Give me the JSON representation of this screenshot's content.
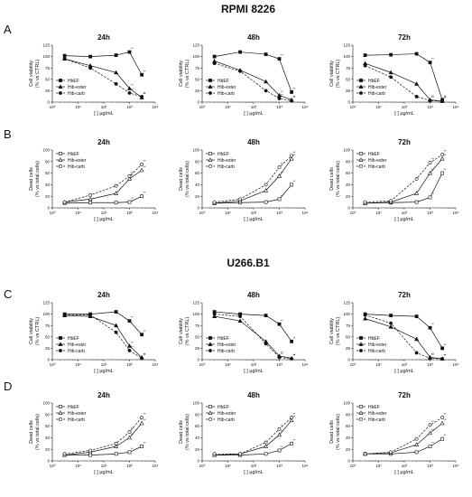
{
  "headers": {
    "rpmi": "RPMI 8226",
    "u266": "U266.B1"
  },
  "panel_letters": [
    "A",
    "B",
    "C",
    "D"
  ],
  "xlabel": "[ ] µg/mL",
  "ylabel_viability": [
    "Cell viability",
    "(% vs CTRL)"
  ],
  "ylabel_dead": [
    "Dead cells",
    "(% vs total cells)"
  ],
  "significance_label": "**",
  "x_tick_labels": [
    "10⁰",
    "10¹",
    "10²",
    "10³",
    "10⁴"
  ],
  "legend": [
    "HbEF",
    "Hib-ester",
    "Hib-carb"
  ],
  "chart_data": [
    {
      "panel": "A",
      "cell_line": "RPMI 8226",
      "title": "24h",
      "type": "line",
      "x_scale": "log",
      "xlim": [
        1,
        10000
      ],
      "ylim": [
        0,
        125
      ],
      "yticks": [
        0,
        25,
        50,
        75,
        100,
        125
      ],
      "legend_position": "bottom-left",
      "x": [
        3,
        30,
        300,
        1000,
        3000
      ],
      "series": [
        {
          "name": "HbEF",
          "values": [
            102,
            100,
            103,
            110,
            60
          ]
        },
        {
          "name": "Hib-ester",
          "values": [
            95,
            80,
            65,
            30,
            10
          ]
        },
        {
          "name": "Hib-carb",
          "values": [
            95,
            75,
            40,
            20,
            12
          ]
        }
      ]
    },
    {
      "panel": "A",
      "cell_line": "RPMI 8226",
      "title": "48h",
      "type": "line",
      "x_scale": "log",
      "xlim": [
        1,
        10000
      ],
      "ylim": [
        0,
        125
      ],
      "yticks": [
        0,
        25,
        50,
        75,
        100,
        125
      ],
      "legend_position": "bottom-left",
      "x": [
        3,
        30,
        300,
        1000,
        3000
      ],
      "series": [
        {
          "name": "HbEF",
          "values": [
            100,
            110,
            105,
            95,
            22
          ]
        },
        {
          "name": "Hib-ester",
          "values": [
            90,
            70,
            45,
            15,
            5
          ]
        },
        {
          "name": "Hib-carb",
          "values": [
            85,
            68,
            25,
            8,
            3
          ]
        }
      ]
    },
    {
      "panel": "A",
      "cell_line": "RPMI 8226",
      "title": "72h",
      "type": "line",
      "x_scale": "log",
      "xlim": [
        1,
        10000
      ],
      "ylim": [
        0,
        125
      ],
      "yticks": [
        0,
        25,
        50,
        75,
        100,
        125
      ],
      "legend_position": "bottom-left",
      "x": [
        3,
        30,
        300,
        1000,
        3000
      ],
      "series": [
        {
          "name": "HbEF",
          "values": [
            103,
            104,
            106,
            87,
            5
          ]
        },
        {
          "name": "Hib-ester",
          "values": [
            85,
            65,
            40,
            5,
            2
          ]
        },
        {
          "name": "Hib-carb",
          "values": [
            80,
            55,
            12,
            3,
            2
          ]
        }
      ]
    },
    {
      "panel": "B",
      "cell_line": "RPMI 8226",
      "title": "24h",
      "type": "line",
      "x_scale": "log",
      "xlim": [
        1,
        10000
      ],
      "ylim": [
        0,
        100
      ],
      "yticks": [
        0,
        20,
        40,
        60,
        80,
        100
      ],
      "legend_position": "top-left",
      "x": [
        3,
        30,
        300,
        1000,
        3000
      ],
      "series": [
        {
          "name": "HbEF",
          "values": [
            8,
            9,
            9,
            10,
            20
          ]
        },
        {
          "name": "Hib-ester",
          "values": [
            10,
            15,
            25,
            50,
            65
          ]
        },
        {
          "name": "Hib-carb",
          "values": [
            10,
            22,
            38,
            55,
            75
          ]
        }
      ]
    },
    {
      "panel": "B",
      "cell_line": "RPMI 8226",
      "title": "48h",
      "type": "line",
      "x_scale": "log",
      "xlim": [
        1,
        10000
      ],
      "ylim": [
        0,
        100
      ],
      "yticks": [
        0,
        20,
        40,
        60,
        80,
        100
      ],
      "legend_position": "top-left",
      "x": [
        3,
        30,
        300,
        1000,
        3000
      ],
      "series": [
        {
          "name": "HbEF",
          "values": [
            8,
            9,
            10,
            15,
            40
          ]
        },
        {
          "name": "Hib-ester",
          "values": [
            8,
            12,
            30,
            55,
            85
          ]
        },
        {
          "name": "Hib-carb",
          "values": [
            10,
            15,
            40,
            70,
            90
          ]
        }
      ]
    },
    {
      "panel": "B",
      "cell_line": "RPMI 8226",
      "title": "72h",
      "type": "line",
      "x_scale": "log",
      "xlim": [
        1,
        10000
      ],
      "ylim": [
        0,
        100
      ],
      "yticks": [
        0,
        20,
        40,
        60,
        80,
        100
      ],
      "legend_position": "top-left",
      "x": [
        3,
        30,
        300,
        1000,
        3000
      ],
      "series": [
        {
          "name": "HbEF",
          "values": [
            8,
            9,
            10,
            18,
            60
          ]
        },
        {
          "name": "Hib-ester",
          "values": [
            8,
            10,
            25,
            60,
            85
          ]
        },
        {
          "name": "Hib-carb",
          "values": [
            10,
            12,
            50,
            78,
            92
          ]
        }
      ]
    },
    {
      "panel": "C",
      "cell_line": "U266.B1",
      "title": "24h",
      "type": "line",
      "x_scale": "log",
      "xlim": [
        1,
        10000
      ],
      "ylim": [
        0,
        125
      ],
      "yticks": [
        0,
        25,
        50,
        75,
        100,
        125
      ],
      "legend_position": "bottom-left",
      "x": [
        3,
        30,
        300,
        1000,
        3000
      ],
      "series": [
        {
          "name": "HbEF",
          "values": [
            100,
            100,
            105,
            85,
            55
          ]
        },
        {
          "name": "Hib-ester",
          "values": [
            97,
            95,
            75,
            30,
            5
          ]
        },
        {
          "name": "Hib-carb",
          "values": [
            99,
            98,
            60,
            20,
            3
          ]
        }
      ]
    },
    {
      "panel": "C",
      "cell_line": "U266.B1",
      "title": "48h",
      "type": "line",
      "x_scale": "log",
      "xlim": [
        1,
        10000
      ],
      "ylim": [
        0,
        125
      ],
      "yticks": [
        0,
        25,
        50,
        75,
        100,
        125
      ],
      "legend_position": "bottom-left",
      "x": [
        3,
        30,
        300,
        1000,
        3000
      ],
      "series": [
        {
          "name": "HbEF",
          "values": [
            105,
            100,
            97,
            78,
            40
          ]
        },
        {
          "name": "Hib-ester",
          "values": [
            95,
            85,
            40,
            8,
            3
          ]
        },
        {
          "name": "Hib-carb",
          "values": [
            100,
            95,
            35,
            5,
            2
          ]
        }
      ]
    },
    {
      "panel": "C",
      "cell_line": "U266.B1",
      "title": "72h",
      "type": "line",
      "x_scale": "log",
      "xlim": [
        1,
        10000
      ],
      "ylim": [
        0,
        125
      ],
      "yticks": [
        0,
        25,
        50,
        75,
        100,
        125
      ],
      "legend_position": "bottom-left",
      "x": [
        3,
        30,
        300,
        1000,
        3000
      ],
      "series": [
        {
          "name": "HbEF",
          "values": [
            100,
            97,
            95,
            70,
            25
          ]
        },
        {
          "name": "Hib-ester",
          "values": [
            90,
            72,
            45,
            5,
            2
          ]
        },
        {
          "name": "Hib-carb",
          "values": [
            98,
            80,
            15,
            3,
            2
          ]
        }
      ]
    },
    {
      "panel": "D",
      "cell_line": "U266.B1",
      "title": "24h",
      "type": "line",
      "x_scale": "log",
      "xlim": [
        1,
        10000
      ],
      "ylim": [
        0,
        100
      ],
      "yticks": [
        0,
        20,
        40,
        60,
        80,
        100
      ],
      "legend_position": "top-left",
      "x": [
        3,
        30,
        300,
        1000,
        3000
      ],
      "series": [
        {
          "name": "HbEF",
          "values": [
            10,
            10,
            12,
            15,
            25
          ]
        },
        {
          "name": "Hib-ester",
          "values": [
            10,
            15,
            25,
            40,
            65
          ]
        },
        {
          "name": "Hib-carb",
          "values": [
            12,
            18,
            30,
            50,
            75
          ]
        }
      ]
    },
    {
      "panel": "D",
      "cell_line": "U266.B1",
      "title": "48h",
      "type": "line",
      "x_scale": "log",
      "xlim": [
        1,
        10000
      ],
      "ylim": [
        0,
        100
      ],
      "yticks": [
        0,
        20,
        40,
        60,
        80,
        100
      ],
      "legend_position": "top-left",
      "x": [
        3,
        30,
        300,
        1000,
        3000
      ],
      "series": [
        {
          "name": "HbEF",
          "values": [
            10,
            10,
            12,
            18,
            30
          ]
        },
        {
          "name": "Hib-ester",
          "values": [
            10,
            12,
            25,
            45,
            70
          ]
        },
        {
          "name": "Hib-carb",
          "values": [
            12,
            12,
            32,
            55,
            75
          ]
        }
      ]
    },
    {
      "panel": "D",
      "cell_line": "U266.B1",
      "title": "72h",
      "type": "line",
      "x_scale": "log",
      "xlim": [
        1,
        10000
      ],
      "ylim": [
        0,
        100
      ],
      "yticks": [
        0,
        20,
        40,
        60,
        80,
        100
      ],
      "legend_position": "top-left",
      "x": [
        3,
        30,
        300,
        1000,
        3000
      ],
      "series": [
        {
          "name": "HbEF",
          "values": [
            12,
            12,
            15,
            25,
            38
          ]
        },
        {
          "name": "Hib-ester",
          "values": [
            12,
            14,
            28,
            48,
            65
          ]
        },
        {
          "name": "Hib-carb",
          "values": [
            12,
            15,
            38,
            62,
            75
          ]
        }
      ]
    }
  ]
}
